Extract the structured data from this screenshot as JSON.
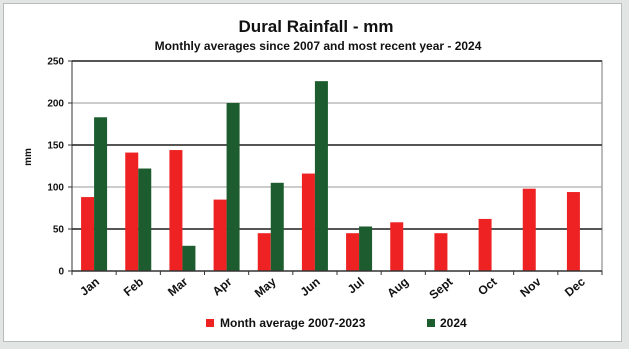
{
  "chart_data": {
    "type": "bar",
    "title": "Dural Rainfall - mm",
    "subtitle": "Monthly averages since 2007 and most recent year - 2024",
    "ylabel": "mm",
    "xlabel": "",
    "ylim": [
      0,
      250
    ],
    "yticks": [
      0,
      50,
      100,
      150,
      200,
      250
    ],
    "grid": true,
    "legend_position": "bottom",
    "categories": [
      "Jan",
      "Feb",
      "Mar",
      "Apr",
      "May",
      "Jun",
      "Jul",
      "Aug",
      "Sept",
      "Oct",
      "Nov",
      "Dec"
    ],
    "series": [
      {
        "name": "Month average 2007-2023",
        "color": "#ee2222",
        "values": [
          88,
          141,
          144,
          85,
          45,
          116,
          45,
          58,
          45,
          62,
          98,
          94
        ]
      },
      {
        "name": "2024",
        "color": "#1c5c2e",
        "values": [
          183,
          122,
          30,
          200,
          105,
          226,
          53,
          null,
          null,
          null,
          null,
          null
        ]
      }
    ]
  }
}
